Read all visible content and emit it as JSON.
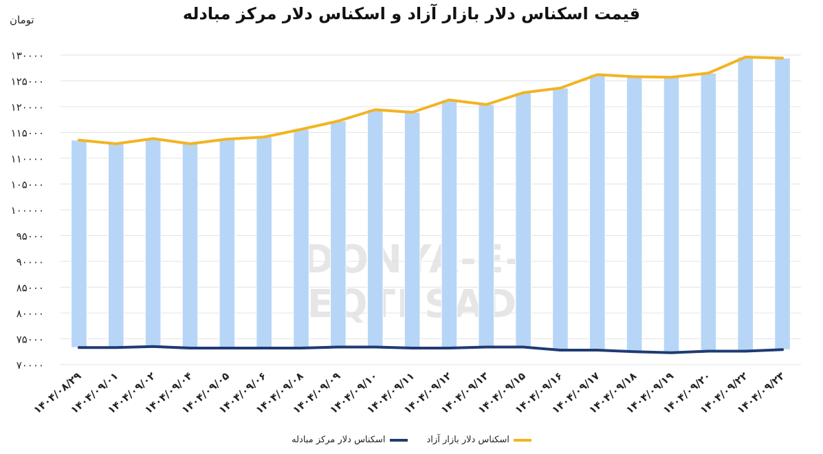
{
  "chart_data": {
    "type": "bar",
    "title": "قیمت اسکناس دلار بازار آزاد و اسکناس دلار مرکز مبادله",
    "ylabel": "تومان",
    "ylim": [
      70000,
      130000
    ],
    "y_ticks": [
      "۷۰۰۰۰",
      "۷۵۰۰۰",
      "۸۰۰۰۰",
      "۸۵۰۰۰",
      "۹۰۰۰۰",
      "۹۵۰۰۰",
      "۱۰۰۰۰۰",
      "۱۰۵۰۰۰",
      "۱۱۰۰۰۰",
      "۱۱۵۰۰۰",
      "۱۲۰۰۰۰",
      "۱۲۵۰۰۰",
      "۱۳۰۰۰۰"
    ],
    "y_tick_values": [
      70000,
      75000,
      80000,
      85000,
      90000,
      95000,
      100000,
      105000,
      110000,
      115000,
      120000,
      125000,
      130000
    ],
    "categories": [
      "۱۴۰۴/۰۸/۲۹",
      "۱۴۰۴/۰۹/۰۱",
      "۱۴۰۴/۰۹/۰۲",
      "۱۴۰۴/۰۹/۰۴",
      "۱۴۰۴/۰۹/۰۵",
      "۱۴۰۴/۰۹/۰۶",
      "۱۴۰۴/۰۹/۰۸",
      "۱۴۰۴/۰۹/۰۹",
      "۱۴۰۴/۰۹/۱۰",
      "۱۴۰۴/۰۹/۱۱",
      "۱۴۰۴/۰۹/۱۲",
      "۱۴۰۴/۰۹/۱۳",
      "۱۴۰۴/۰۹/۱۵",
      "۱۴۰۴/۰۹/۱۶",
      "۱۴۰۴/۰۹/۱۷",
      "۱۴۰۴/۰۹/۱۸",
      "۱۴۰۴/۰۹/۱۹",
      "۱۴۰۴/۰۹/۲۰",
      "۱۴۰۴/۰۹/۲۲",
      "۱۴۰۴/۰۹/۲۳"
    ],
    "series": [
      {
        "name": "اسکناس دلار بازار آزاد",
        "color": "#f2b422",
        "values": [
          113500,
          112800,
          113800,
          112800,
          113700,
          114100,
          115600,
          117200,
          119400,
          118900,
          121300,
          120400,
          122700,
          123600,
          126200,
          125800,
          125700,
          126500,
          129600,
          129400
        ]
      },
      {
        "name": "اسکناس دلار مرکز مبادله",
        "color": "#1f3b73",
        "values": [
          73300,
          73300,
          73500,
          73200,
          73200,
          73200,
          73200,
          73400,
          73400,
          73200,
          73200,
          73400,
          73400,
          72800,
          72800,
          72500,
          72300,
          72600,
          72600,
          72900
        ]
      }
    ],
    "bar_color": "#b7d6f7",
    "grid": true,
    "legend_position": "bottom"
  },
  "watermark": "DONYA-E-EQTESAD"
}
